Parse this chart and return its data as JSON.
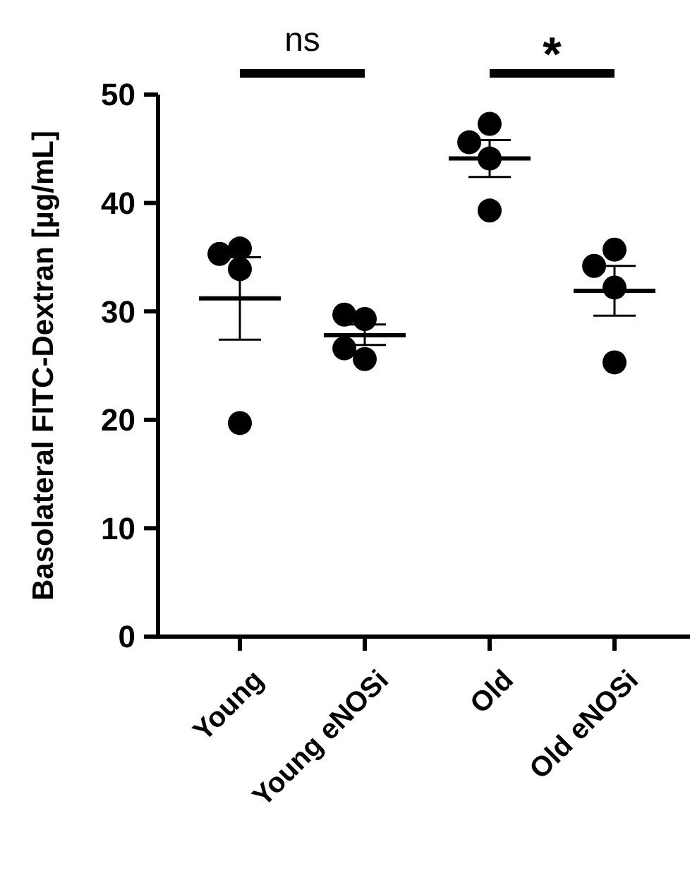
{
  "chart_data": {
    "type": "scatter",
    "ylabel": "Basolateral FITC-Dextran [µg/mL]",
    "categories": [
      "Young",
      "Young eNOSi",
      "Old",
      "Old eNOSi"
    ],
    "ylim": [
      0,
      50
    ],
    "yticks": [
      0,
      10,
      20,
      30,
      40,
      50
    ],
    "grid": false,
    "series": [
      {
        "marker": "circle",
        "color": "#000000",
        "x": [
          "Young",
          "Young",
          "Young",
          "Young",
          "Young eNOSi",
          "Young eNOSi",
          "Young eNOSi",
          "Young eNOSi",
          "Old",
          "Old",
          "Old",
          "Old",
          "Old eNOSi",
          "Old eNOSi",
          "Old eNOSi",
          "Old eNOSi"
        ],
        "values": [
          35.8,
          35.3,
          33.9,
          19.7,
          29.3,
          29.7,
          25.6,
          26.6,
          47.3,
          45.6,
          44.1,
          39.3,
          35.7,
          34.2,
          32.2,
          25.3
        ]
      },
      {
        "type": "box",
        "color": "#000000",
        "boxes": [
          {
            "low": 27.4,
            "q1": 31.2,
            "median": 31.2,
            "q3": 31.2,
            "high": 35.0
          },
          {
            "low": 26.9,
            "q1": 27.8,
            "median": 27.8,
            "q3": 27.8,
            "high": 28.8
          },
          {
            "low": 42.4,
            "q1": 44.1,
            "median": 44.1,
            "q3": 44.1,
            "high": 45.8
          },
          {
            "low": 29.6,
            "q1": 31.9,
            "median": 31.9,
            "q3": 31.9,
            "high": 34.2
          }
        ]
      }
    ],
    "annotations": [
      "ns",
      "*"
    ]
  }
}
